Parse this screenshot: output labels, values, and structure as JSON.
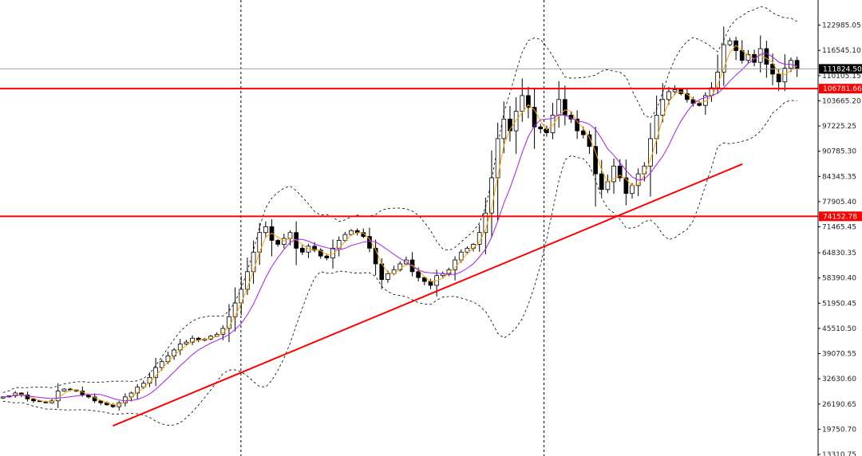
{
  "chart_data": {
    "type": "candlestick",
    "title": "",
    "y_scale": "linear",
    "ylim": [
      13310.75,
      129425.0
    ],
    "y_ticks": [
      "122985.05",
      "116545.10",
      "110105.15",
      "103665.20",
      "97225.25",
      "90785.30",
      "84345.35",
      "77905.40",
      "71465.45",
      "64830.35",
      "58390.40",
      "51950.45",
      "45510.50",
      "39070.55",
      "32630.60",
      "26190.65",
      "19750.70",
      "13310.75"
    ],
    "y_tick_values": [
      122985.05,
      116545.1,
      110105.15,
      103665.2,
      97225.25,
      90785.3,
      84345.35,
      77905.4,
      71465.45,
      64830.35,
      58390.4,
      51950.45,
      45510.5,
      39070.55,
      32630.6,
      26190.65,
      19750.7,
      13310.75
    ],
    "current_price": {
      "value": 111824.5,
      "label": "111824.50",
      "color": "#000000"
    },
    "horizontal_levels": [
      {
        "value": 106781.66,
        "label": "106781.66",
        "color": "#ff0000"
      },
      {
        "value": 74152.78,
        "label": "74152.78",
        "color": "#ff0000"
      }
    ],
    "vertical_separators": [
      0.2945,
      0.665
    ],
    "trendline": {
      "color": "#ff0000",
      "from": [
        0.138,
        20600
      ],
      "to": [
        0.9075,
        87500
      ]
    },
    "colors": {
      "bull_body": "#ffffff",
      "bear_body": "#000000",
      "wick": "#000000",
      "bollinger": "#000000",
      "ma_fast": "#ffa500",
      "ma_slow": "#a020f0",
      "grid_line": "#000000",
      "price_line": "#a0a0a0"
    },
    "candles_close_path": [
      28000,
      28300,
      29000,
      28500,
      27500,
      27000,
      26800,
      26500,
      27000,
      29500,
      30000,
      29800,
      29500,
      28500,
      28000,
      27000,
      26500,
      26000,
      25500,
      26500,
      28000,
      29000,
      30500,
      31500,
      33000,
      35500,
      37000,
      38500,
      40000,
      41500,
      42000,
      43000,
      42500,
      42800,
      43500,
      44000,
      45500,
      48500,
      52000,
      55500,
      60000,
      65000,
      70000,
      71500,
      68000,
      67000,
      68500,
      70000,
      66000,
      65000,
      66500,
      65500,
      64000,
      63500,
      66000,
      68000,
      69500,
      70500,
      70000,
      69000,
      66000,
      62000,
      58000,
      59500,
      60500,
      62000,
      63000,
      60000,
      58500,
      57500,
      56500,
      59000,
      59500,
      60500,
      63000,
      65000,
      66000,
      67000,
      70000,
      75000,
      84000,
      94000,
      99000,
      96000,
      101000,
      105000,
      102000,
      97000,
      96500,
      95500,
      100000,
      104000,
      100000,
      99000,
      96000,
      95000,
      92000,
      85000,
      81000,
      83000,
      87000,
      84000,
      80000,
      82000,
      85000,
      87000,
      94000,
      100000,
      104000,
      106000,
      106500,
      105500,
      104000,
      103000,
      102500,
      105000,
      107000,
      111000,
      118000,
      119000,
      116500,
      114000,
      115500,
      113500,
      117000,
      113000,
      110500,
      108500,
      112000,
      114000,
      111824.5
    ]
  }
}
